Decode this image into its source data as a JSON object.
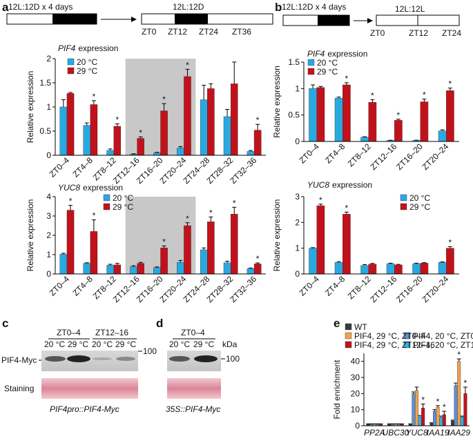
{
  "panel_labels": [
    "a",
    "b",
    "c",
    "d",
    "e"
  ],
  "schemes": [
    {
      "pre": "12L:12D x 4 days",
      "main": "12L:12D",
      "zt": [
        "ZT0",
        "ZT12",
        "ZT24",
        "ZT36"
      ]
    },
    {
      "pre": "12L:12D x 4 days",
      "main": "12L:12L",
      "zt": [
        "ZT0",
        "ZT12",
        "ZT24"
      ]
    }
  ],
  "blots": [
    {
      "groups": [
        "ZT0–4",
        "ZT12–16"
      ],
      "temps": [
        "20 °C",
        "29 °C",
        "20 °C",
        "29 °C"
      ],
      "rows": [
        "PIF4-Myc",
        "Staining"
      ],
      "marker": "100",
      "caption": "PIF4pro::PIF4-Myc"
    },
    {
      "groups": [
        "ZT0–4"
      ],
      "temps": [
        "20 °C",
        "29 °C"
      ],
      "unit": "kDa",
      "marker": "100",
      "caption": "35S::PIF4-Myc"
    }
  ],
  "chart_data": [
    {
      "type": "bar",
      "title": {
        "gene": "PIF4",
        "text": "expression"
      },
      "ylabel": "Relative expression",
      "categories": [
        "ZT0–4",
        "ZT4–8",
        "ZT8–12",
        "ZT12–16",
        "ZT16–20",
        "ZT20–24",
        "ZT24–28",
        "ZT28–32",
        "ZT32–36"
      ],
      "series": [
        {
          "name": "20 °C",
          "color": "#29a9e1",
          "values": [
            1.0,
            0.62,
            0.1,
            0.02,
            0.05,
            0.15,
            1.15,
            0.8,
            0.08
          ],
          "errors": [
            0.15,
            0.05,
            0.03,
            0.01,
            0.01,
            0.03,
            0.3,
            0.15,
            0.02
          ]
        },
        {
          "name": "29 °C",
          "color": "#c1121c",
          "values": [
            1.28,
            1.05,
            0.6,
            0.35,
            0.92,
            1.63,
            1.38,
            1.48,
            0.52
          ],
          "errors": [
            0.02,
            0.08,
            0.05,
            0.03,
            0.15,
            0.15,
            0.1,
            0.45,
            0.12
          ],
          "significance": [
            null,
            "*",
            "*",
            "*",
            "*",
            "*",
            null,
            null,
            "*"
          ]
        }
      ],
      "ylim": [
        0,
        2
      ],
      "yticks": [
        0,
        0.5,
        1,
        1.5,
        2
      ],
      "shade": {
        "from": 3,
        "to": 5
      }
    },
    {
      "type": "bar",
      "title": {
        "gene": "YUC8",
        "text": "expression"
      },
      "ylabel": "Relative expression",
      "categories": [
        "ZT0–4",
        "ZT4–8",
        "ZT8–12",
        "ZT12–16",
        "ZT16–20",
        "ZT20–24",
        "ZT24–28",
        "ZT28–32",
        "ZT32–36"
      ],
      "series": [
        {
          "name": "20 °C",
          "color": "#29a9e1",
          "values": [
            1.02,
            0.55,
            0.45,
            0.38,
            0.33,
            0.6,
            1.25,
            0.58,
            0.28
          ],
          "errors": [
            0.05,
            0.03,
            0.05,
            0.05,
            0.03,
            0.1,
            0.1,
            0.08,
            0.03
          ]
        },
        {
          "name": "29 °C",
          "color": "#c1121c",
          "values": [
            3.3,
            2.2,
            0.47,
            0.55,
            1.35,
            2.5,
            2.7,
            3.1,
            0.52
          ],
          "errors": [
            0.25,
            0.6,
            0.08,
            0.05,
            0.1,
            0.15,
            0.25,
            0.35,
            0.05
          ],
          "significance": [
            "*",
            "*",
            null,
            null,
            "*",
            "*",
            "*",
            "*",
            "*"
          ]
        }
      ],
      "ylim": [
        0,
        4
      ],
      "yticks": [
        0,
        1,
        2,
        3,
        4
      ],
      "shade": {
        "from": 3,
        "to": 5
      }
    },
    {
      "type": "bar",
      "title": {
        "gene": "PIF4",
        "text": "expression"
      },
      "ylabel": "Relative expression",
      "categories": [
        "ZT0–4",
        "ZT4–8",
        "ZT8–12",
        "ZT12–16",
        "ZT16–20",
        "ZT20–24"
      ],
      "series": [
        {
          "name": "20 °C",
          "color": "#29a9e1",
          "values": [
            1.0,
            0.82,
            0.08,
            0.02,
            0.02,
            0.2
          ],
          "errors": [
            0.07,
            0.02,
            0.01,
            0.005,
            0.005,
            0.02
          ]
        },
        {
          "name": "29 °C",
          "color": "#c1121c",
          "values": [
            1.02,
            1.07,
            0.74,
            0.4,
            0.75,
            0.96
          ],
          "errors": [
            0.02,
            0.04,
            0.05,
            0.02,
            0.05,
            0.05
          ],
          "significance": [
            null,
            "*",
            "*",
            "*",
            "*",
            "*"
          ]
        }
      ],
      "ylim": [
        0,
        1.5
      ],
      "yticks": [
        0,
        0.5,
        1,
        1.5
      ]
    },
    {
      "type": "bar",
      "title": {
        "gene": "YUC8",
        "text": "expression"
      },
      "ylabel": "Relative expression",
      "categories": [
        "ZT0–4",
        "ZT4–8",
        "ZT8–12",
        "ZT12–16",
        "ZT16–20",
        "ZT20–24"
      ],
      "series": [
        {
          "name": "20 °C",
          "color": "#29a9e1",
          "values": [
            1.0,
            0.45,
            0.33,
            0.4,
            0.4,
            0.45
          ],
          "errors": [
            0.02,
            0.03,
            0.03,
            0.02,
            0.02,
            0.02
          ]
        },
        {
          "name": "29 °C",
          "color": "#c1121c",
          "values": [
            2.65,
            2.32,
            0.38,
            0.35,
            0.42,
            1.0
          ],
          "errors": [
            0.06,
            0.08,
            0.03,
            0.02,
            0.02,
            0.06
          ],
          "significance": [
            "*",
            "*",
            null,
            null,
            null,
            "*"
          ]
        }
      ],
      "ylim": [
        0,
        3
      ],
      "yticks": [
        0,
        1,
        2,
        3
      ]
    },
    {
      "type": "bar",
      "ylabel": "Fold enrichment",
      "categories": [
        "PP2A",
        "UBC30",
        "YUC8",
        "IAA19",
        "IAA29"
      ],
      "series": [
        {
          "name": "WT",
          "color": "#3a3a3a",
          "values": [
            1,
            1,
            1,
            1.5,
            3
          ],
          "errors": [
            0.2,
            0.2,
            0.2,
            0.3,
            0.5
          ]
        },
        {
          "name": "PIF4, 20 °C, ZT0–4",
          "color": "#5b8fd6",
          "values": [
            1,
            1,
            20,
            9,
            25
          ],
          "errors": [
            0.2,
            0.2,
            1,
            1,
            1.5
          ]
        },
        {
          "name": "PIF4, 29 °C, ZT0–4",
          "color": "#f0a050",
          "values": [
            1,
            1,
            22,
            11.5,
            40
          ],
          "errors": [
            0.2,
            0.2,
            2,
            1,
            1.5
          ],
          "significance": [
            null,
            null,
            null,
            "*",
            "*"
          ]
        },
        {
          "name": "PIF4, 20 °C, ZT12–16",
          "color": "#2ab4e6",
          "values": [
            1,
            1,
            5.5,
            5,
            5.5
          ],
          "errors": [
            0.2,
            0.2,
            0.8,
            1,
            0.5
          ]
        },
        {
          "name": "PIF4, 29 °C, ZT12–16",
          "color": "#c1121c",
          "values": [
            1,
            1,
            11,
            7,
            20
          ],
          "errors": [
            0.2,
            0.2,
            2.5,
            2,
            4
          ],
          "significance": [
            null,
            null,
            "*",
            "*",
            "*"
          ]
        }
      ],
      "ylim": [
        0,
        45
      ],
      "yticks": [
        0,
        10,
        20,
        30,
        40
      ]
    }
  ]
}
